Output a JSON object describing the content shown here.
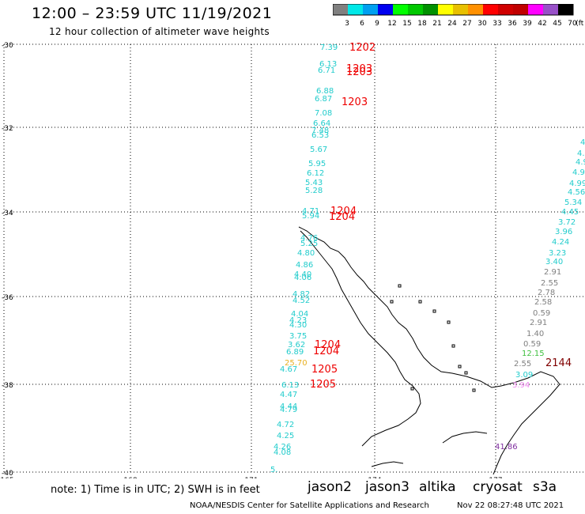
{
  "header": {
    "title": "12:00 – 23:59 UTC 11/19/2021",
    "subtitle": "12 hour collection of altimeter wave heights"
  },
  "colorbar": {
    "colors": [
      "#808080",
      "#00e8e8",
      "#00a0f0",
      "#0000f0",
      "#00ff00",
      "#00c800",
      "#009000",
      "#ffff00",
      "#e8c000",
      "#ff9000",
      "#ff0000",
      "#d00000",
      "#c00000",
      "#ff00ff",
      "#9850c8",
      "#000000"
    ],
    "labels": [
      "3",
      "6",
      "9",
      "12",
      "15",
      "18",
      "21",
      "24",
      "27",
      "30",
      "33",
      "36",
      "39",
      "42",
      "45",
      "70",
      "(ft)"
    ]
  },
  "axes": {
    "lat_labels": [
      "-30",
      "-32",
      "-34",
      "-36",
      "-38",
      "-40"
    ],
    "lon_labels": [
      "165",
      "168",
      "171",
      "174",
      "177"
    ]
  },
  "readings": [
    {
      "text": "7.39",
      "color": "#22cccc"
    },
    {
      "text": "6.13",
      "color": "#22cccc"
    },
    {
      "text": "6.71",
      "color": "#22cccc"
    },
    {
      "text": "6.88",
      "color": "#22cccc"
    },
    {
      "text": "6.87",
      "color": "#22cccc"
    },
    {
      "text": "7.08",
      "color": "#22cccc"
    },
    {
      "text": "6.64",
      "color": "#22cccc"
    },
    {
      "text": "7.48",
      "color": "#22cccc"
    },
    {
      "text": "6.53",
      "color": "#22cccc"
    },
    {
      "text": "5.67",
      "color": "#22cccc"
    },
    {
      "text": "5.95",
      "color": "#22cccc"
    },
    {
      "text": "6.12",
      "color": "#22cccc"
    },
    {
      "text": "5.43",
      "color": "#22cccc"
    },
    {
      "text": "5.28",
      "color": "#22cccc"
    },
    {
      "text": "4.71",
      "color": "#22cccc"
    },
    {
      "text": "5.94",
      "color": "#22cccc"
    },
    {
      "text": "4.76",
      "color": "#22cccc"
    },
    {
      "text": "5.25",
      "color": "#22cccc"
    },
    {
      "text": "4.80",
      "color": "#22cccc"
    },
    {
      "text": "4.86",
      "color": "#22cccc"
    },
    {
      "text": "4.40",
      "color": "#22cccc"
    },
    {
      "text": "4.06",
      "color": "#22cccc"
    },
    {
      "text": "4.82",
      "color": "#22cccc"
    },
    {
      "text": "4.52",
      "color": "#22cccc"
    },
    {
      "text": "4.04",
      "color": "#22cccc"
    },
    {
      "text": "4.23",
      "color": "#22cccc"
    },
    {
      "text": "4.30",
      "color": "#22cccc"
    },
    {
      "text": "3.75",
      "color": "#22cccc"
    },
    {
      "text": "3.62",
      "color": "#22cccc"
    },
    {
      "text": "6.89",
      "color": "#22cccc"
    },
    {
      "text": "25.70",
      "color": "#e8b020"
    },
    {
      "text": "4.67",
      "color": "#22cccc"
    },
    {
      "text": "6.13",
      "color": "#22cccc"
    },
    {
      "text": "4.47",
      "color": "#22cccc"
    },
    {
      "text": "4.44",
      "color": "#22cccc"
    },
    {
      "text": "4.79",
      "color": "#22cccc"
    },
    {
      "text": "4.72",
      "color": "#22cccc"
    },
    {
      "text": "4.25",
      "color": "#22cccc"
    },
    {
      "text": "4.26",
      "color": "#22cccc"
    },
    {
      "text": "4.08",
      "color": "#22cccc"
    },
    {
      "text": "5.",
      "color": "#22cccc"
    },
    {
      "text": "4.",
      "color": "#22cccc"
    },
    {
      "text": "4.4",
      "color": "#22cccc"
    },
    {
      "text": "4.9",
      "color": "#22cccc"
    },
    {
      "text": "4.94",
      "color": "#22cccc"
    },
    {
      "text": "4.99",
      "color": "#22cccc"
    },
    {
      "text": "4.56",
      "color": "#22cccc"
    },
    {
      "text": "5.34",
      "color": "#22cccc"
    },
    {
      "text": "4.45",
      "color": "#22cccc"
    },
    {
      "text": "3.72",
      "color": "#22cccc"
    },
    {
      "text": "3.96",
      "color": "#22cccc"
    },
    {
      "text": "4.24",
      "color": "#22cccc"
    },
    {
      "text": "3.23",
      "color": "#22cccc"
    },
    {
      "text": "3.40",
      "color": "#22cccc"
    },
    {
      "text": "2.91",
      "color": "#808080"
    },
    {
      "text": "2.55",
      "color": "#808080"
    },
    {
      "text": "2.78",
      "color": "#808080"
    },
    {
      "text": "2.58",
      "color": "#808080"
    },
    {
      "text": "0.59",
      "color": "#808080"
    },
    {
      "text": "2.91",
      "color": "#808080"
    },
    {
      "text": "1.40",
      "color": "#808080"
    },
    {
      "text": "0.59",
      "color": "#808080"
    },
    {
      "text": "12.15",
      "color": "#40c040"
    },
    {
      "text": "2.55",
      "color": "#808080"
    },
    {
      "text": "3.09",
      "color": "#22cccc"
    },
    {
      "text": "3.94",
      "color": "#ee88ee"
    },
    {
      "text": "41.86",
      "color": "#8030a0"
    }
  ],
  "times": [
    {
      "text": "1202",
      "color": "#ee0000"
    },
    {
      "text": "1203",
      "color": "#ee0000"
    },
    {
      "text": "1203",
      "color": "#ee0000"
    },
    {
      "text": "1203",
      "color": "#ee0000"
    },
    {
      "text": "1204",
      "color": "#ee0000"
    },
    {
      "text": "1204",
      "color": "#ee0000"
    },
    {
      "text": "1204",
      "color": "#ee0000"
    },
    {
      "text": "1204",
      "color": "#ee0000"
    },
    {
      "text": "1205",
      "color": "#ee0000"
    },
    {
      "text": "1205",
      "color": "#ee0000"
    },
    {
      "text": "2144",
      "color": "#800000"
    }
  ],
  "footer": {
    "note": "note:  1) Time is in UTC; 2) SWH is in feet",
    "satellites": [
      {
        "name": "jason2",
        "color": "#0000cc"
      },
      {
        "name": "jason3",
        "color": "#00a000"
      },
      {
        "name": "altika",
        "color": "#ff9900"
      },
      {
        "name": "cryosat",
        "color": "#cc0000"
      },
      {
        "name": "s3a",
        "color": "#880000"
      }
    ],
    "credit": "NOAA/NESDIS Center for Satellite Applications and Research",
    "generated": "Nov 22 08:27:48 UTC 2021"
  }
}
